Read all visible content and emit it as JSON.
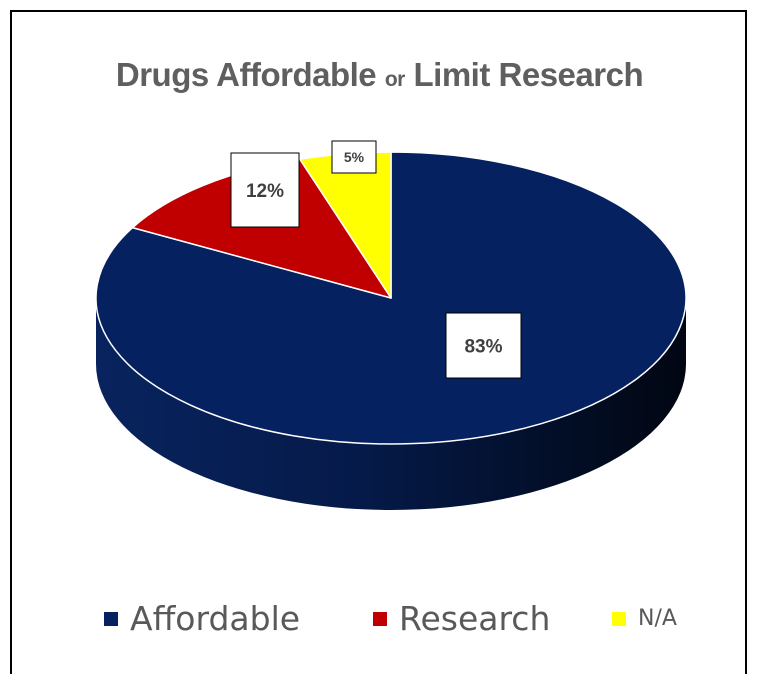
{
  "title": {
    "part1": "Drugs Affordable",
    "part2": "or",
    "part3": "Limit Research"
  },
  "chart_data": {
    "type": "pie",
    "title": "Drugs Affordable or Limit Research",
    "categories": [
      "Affordable",
      "Research",
      "N/A"
    ],
    "values": [
      83,
      12,
      5
    ],
    "labels": [
      "83%",
      "12%",
      "5%"
    ],
    "colors": [
      "#06215f",
      "#c00000",
      "#ffff00"
    ],
    "legend_position": "bottom",
    "style": "3d"
  }
}
